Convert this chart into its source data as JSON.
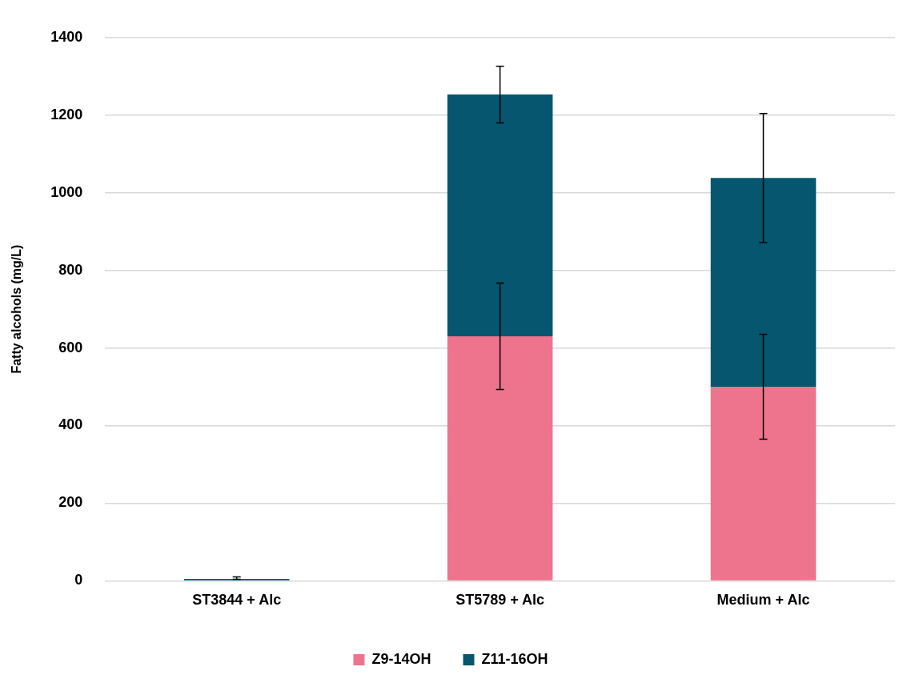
{
  "chart_data": {
    "type": "bar",
    "ylabel": "Fatty alcohols (mg/L)",
    "categories": [
      "ST3844 + Alc",
      "ST5789 + Alc",
      "Medium + Alc"
    ],
    "stacked": true,
    "series": [
      {
        "name": "Z9-14OH",
        "color": "#ed748c",
        "values": [
          null,
          630,
          500
        ],
        "errors": [
          null,
          137,
          135
        ]
      },
      {
        "name": "Z11-16OH",
        "color": "#05566e",
        "values": [
          5,
          623,
          538
        ],
        "errors": [
          [
            1,
            5
          ],
          73,
          166
        ]
      }
    ],
    "ylim": [
      0,
      1400
    ],
    "yticks": [
      0,
      200,
      400,
      600,
      800,
      1000,
      1200,
      1400
    ],
    "grid": "y",
    "legend": "bottom"
  }
}
